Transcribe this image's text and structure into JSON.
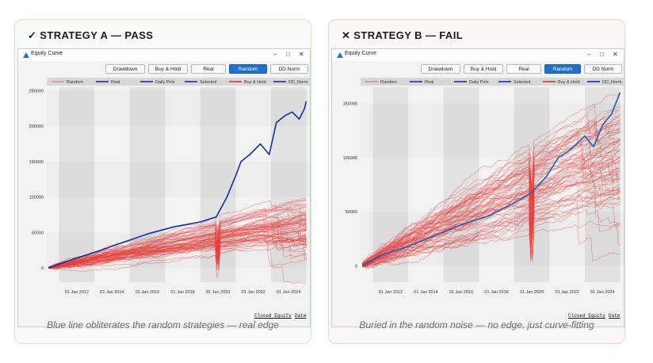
{
  "left": {
    "mark": "✓",
    "title": "STRATEGY A — PASS",
    "window_title": "Equity Curve",
    "buttons": [
      "Drawdown",
      "Buy & Hold",
      "Real",
      "Random",
      "DD Norm"
    ],
    "active_button": "Random",
    "legend": [
      "Random",
      "Real",
      "Daily Pnls",
      "Selected",
      "Buy & Hold",
      "DD_Norm"
    ],
    "footer_links": [
      "Closed Equity",
      "Date"
    ],
    "caption": "Blue line obliterates the random strategies — real edge",
    "colors": {
      "accent": "#2e8b57",
      "border": "#cfe6cf"
    },
    "chart_data": {
      "type": "line",
      "ylabel": "",
      "xlabel": "",
      "yticks": [
        0,
        50000,
        100000,
        150000,
        200000,
        250000
      ],
      "ylim": [
        -20000,
        255000
      ],
      "xticks": [
        "01 Jan 2012",
        "01 Jan 2014",
        "01 Jan 2016",
        "01 Jan 2018",
        "01 Jan 2020",
        "01 Jan 2022",
        "01 Jan 2024"
      ],
      "xlim": [
        2010.3,
        2025.2
      ],
      "tick_years": [
        2012,
        2014,
        2016,
        2018,
        2020,
        2022,
        2024
      ],
      "random_color": "#e8403c",
      "real_color": "#1030a8",
      "real_shape": "strong",
      "random_count": 70,
      "series": [
        {
          "name": "Real",
          "x": [
            2010.4,
            2011.5,
            2013,
            2014.5,
            2016,
            2017.5,
            2019,
            2019.9,
            2020.5,
            2021,
            2021.3,
            2021.8,
            2022.4,
            2022.9,
            2023.3,
            2023.8,
            2024.2,
            2024.6,
            2024.9,
            2025.0
          ],
          "values": [
            0,
            10000,
            22000,
            35000,
            48000,
            58000,
            65000,
            72000,
            100000,
            130000,
            150000,
            160000,
            175000,
            160000,
            205000,
            215000,
            220000,
            210000,
            225000,
            235000
          ]
        }
      ]
    }
  },
  "right": {
    "mark": "✕",
    "title": "STRATEGY B — FAIL",
    "window_title": "Equity Curve",
    "buttons": [
      "Drawdown",
      "Buy & Hold",
      "Real",
      "Random",
      "DD Norm"
    ],
    "active_button": "Random",
    "legend": [
      "Random",
      "Real",
      "Daily Pnls",
      "Selected",
      "Buy & Hold",
      "DD_Norm"
    ],
    "footer_links": [
      "Closed Equity",
      "Date"
    ],
    "caption": "Buried in the random noise — no edge, just curve-fitting",
    "colors": {
      "accent": "#c0392b",
      "border": "#efcfd2"
    },
    "chart_data": {
      "type": "line",
      "ylabel": "",
      "xlabel": "",
      "yticks": [
        0,
        50000,
        100000,
        150000
      ],
      "ylim": [
        -15000,
        165000
      ],
      "xticks": [
        "01 Jan 2012",
        "01 Jan 2014",
        "01 Jan 2016",
        "01 Jan 2018",
        "01 Jan 2020",
        "01 Jan 2022",
        "01 Jan 2024"
      ],
      "xlim": [
        2010.3,
        2025.2
      ],
      "tick_years": [
        2012,
        2014,
        2016,
        2018,
        2020,
        2022,
        2024
      ],
      "random_color": "#e8403c",
      "real_color": "#1f5fb8",
      "real_shape": "weak",
      "random_count": 70,
      "series": [
        {
          "name": "Real",
          "x": [
            2010.4,
            2011.5,
            2013,
            2014.5,
            2016,
            2017.5,
            2019,
            2020,
            2020.8,
            2021.5,
            2022,
            2022.5,
            2023,
            2023.5,
            2024,
            2024.5,
            2025.0
          ],
          "values": [
            0,
            10000,
            18000,
            28000,
            38000,
            46000,
            58000,
            68000,
            82000,
            100000,
            105000,
            112000,
            120000,
            110000,
            130000,
            140000,
            160000
          ]
        }
      ]
    }
  }
}
